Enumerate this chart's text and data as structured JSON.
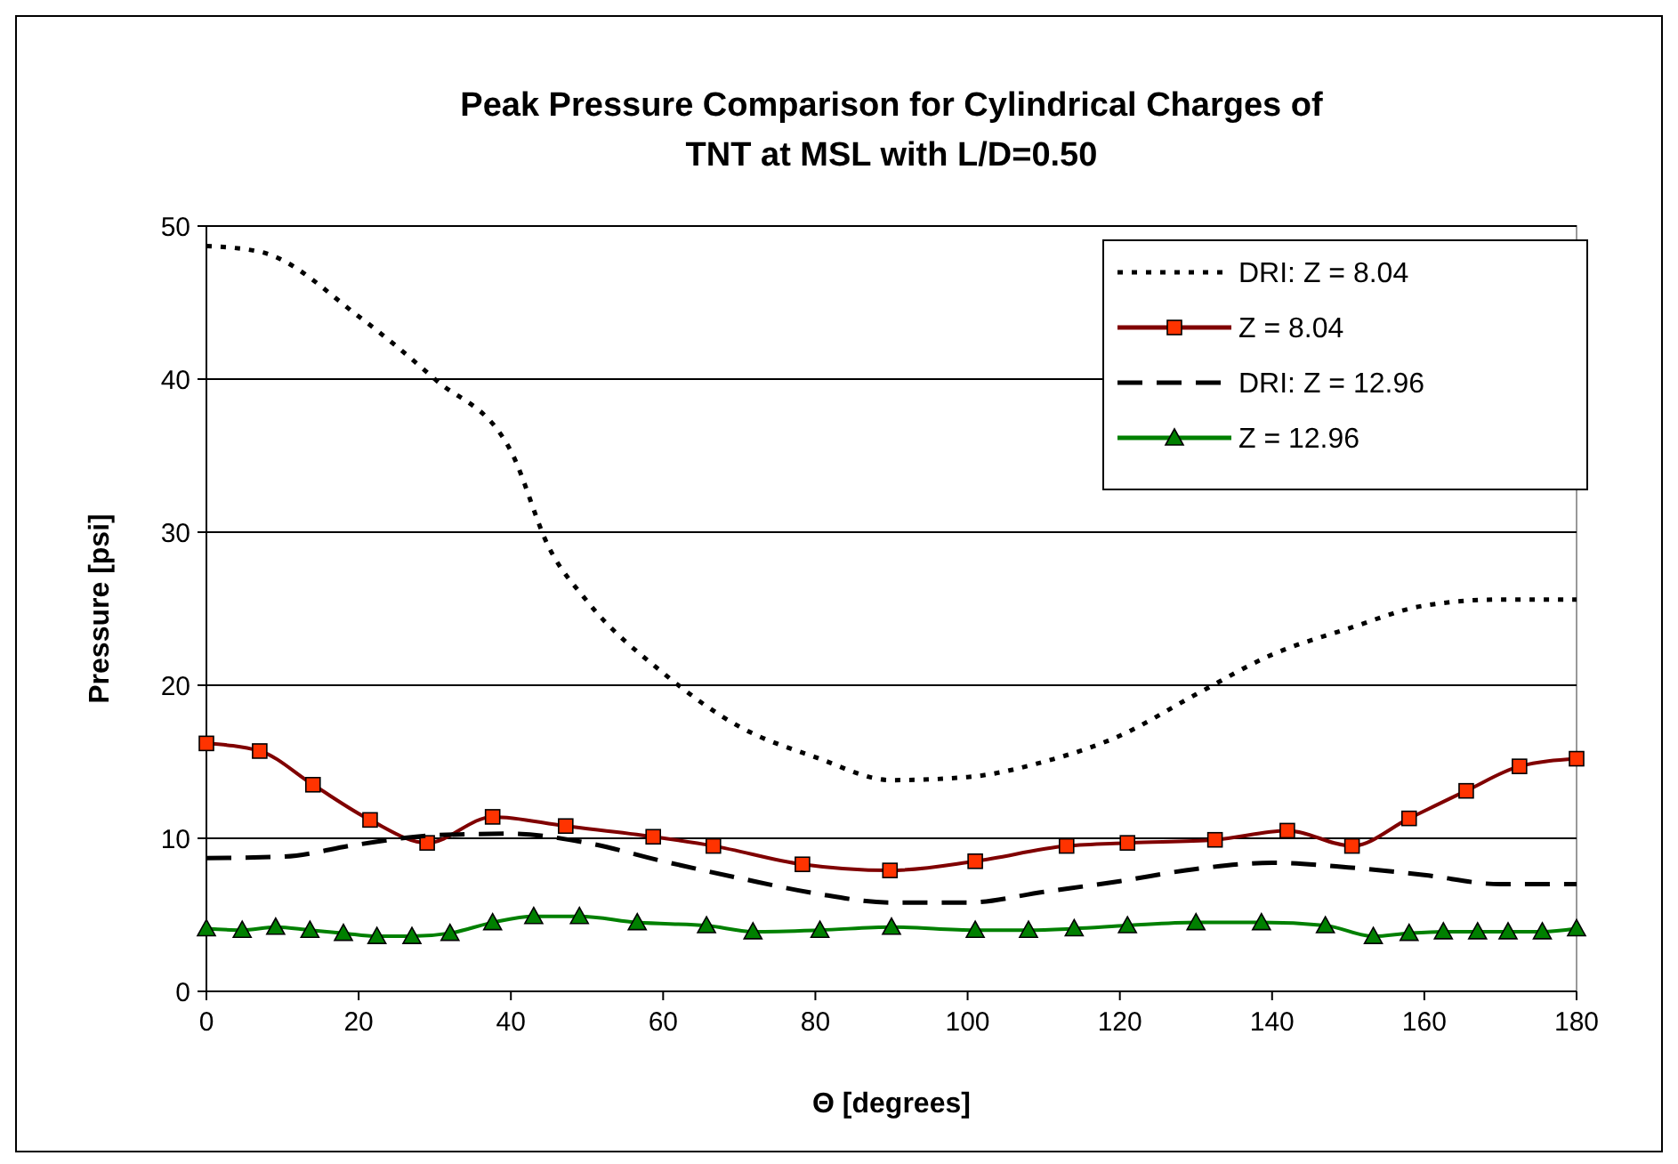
{
  "chart_data": {
    "type": "line",
    "title": "Peak Pressure Comparison for Cylindrical Charges of\nTNT at MSL with L/D=0.50",
    "xlabel": "Θ [degrees]",
    "ylabel": "Pressure [psi]",
    "xlim": [
      0,
      180
    ],
    "xticks": [
      0,
      20,
      40,
      60,
      80,
      100,
      120,
      140,
      160,
      180
    ],
    "ylim": [
      0,
      50
    ],
    "yticks": [
      0,
      10,
      20,
      30,
      40,
      50
    ],
    "grid": "y",
    "legend": "top right",
    "series": [
      {
        "name": "DRI: Z = 8.04",
        "color": "#000000",
        "line_style": "dotted",
        "marker": "none",
        "x": [
          0,
          7.2,
          20,
          30,
          40,
          45,
          50,
          60,
          70,
          80,
          90,
          100,
          110,
          120,
          130,
          140,
          150,
          160,
          170,
          180
        ],
        "values": [
          48.7,
          48.3,
          44.1,
          40,
          35.3,
          29,
          25.5,
          20.8,
          17.3,
          15.3,
          13.8,
          14.0,
          15.0,
          16.7,
          19.4,
          22,
          23.7,
          25.2,
          25.6,
          25.6
        ]
      },
      {
        "name": "Z = 8.04",
        "color": "#800000",
        "marker": "square",
        "line_style": "solid",
        "x": [
          0,
          7,
          14,
          21.5,
          29,
          37.6,
          47.2,
          58.7,
          66.6,
          78.3,
          89.8,
          101,
          113,
          121,
          132.5,
          142,
          150.5,
          158,
          165.5,
          172.5,
          180
        ],
        "values": [
          16.2,
          15.7,
          13.5,
          11.2,
          9.7,
          11.4,
          10.8,
          10.1,
          9.5,
          8.3,
          7.9,
          8.5,
          9.5,
          9.7,
          9.9,
          10.5,
          9.5,
          11.3,
          13.1,
          14.7,
          15.2
        ]
      },
      {
        "name": "DRI: Z = 12.96",
        "color": "#000000",
        "line_style": "dashed",
        "marker": "none",
        "x": [
          0,
          10,
          20,
          30,
          40,
          50,
          60,
          70,
          80,
          90,
          100,
          110,
          120,
          130,
          140,
          150,
          160,
          170,
          180
        ],
        "values": [
          8.7,
          8.8,
          9.6,
          10.2,
          10.3,
          9.7,
          8.5,
          7.4,
          6.4,
          5.8,
          5.8,
          6.5,
          7.2,
          8.0,
          8.4,
          8.1,
          7.6,
          7.0,
          7.0
        ]
      },
      {
        "name": "Z = 12.96",
        "color": "#008000",
        "marker": "triangle",
        "line_style": "solid",
        "x": [
          0,
          4.7,
          9.1,
          13.6,
          18,
          22.4,
          27,
          32,
          37.6,
          43,
          49,
          56.6,
          65.7,
          71.8,
          80.6,
          90,
          101,
          108,
          114,
          121,
          130,
          138.6,
          147,
          153.3,
          158,
          162.5,
          167,
          171,
          175.5,
          180
        ],
        "values": [
          4.1,
          4.0,
          4.2,
          4.0,
          3.8,
          3.6,
          3.6,
          3.8,
          4.5,
          4.9,
          4.9,
          4.5,
          4.3,
          3.9,
          4.0,
          4.2,
          4.0,
          4.0,
          4.1,
          4.3,
          4.5,
          4.5,
          4.3,
          3.6,
          3.8,
          3.9,
          3.9,
          3.9,
          3.9,
          4.1
        ]
      }
    ]
  }
}
